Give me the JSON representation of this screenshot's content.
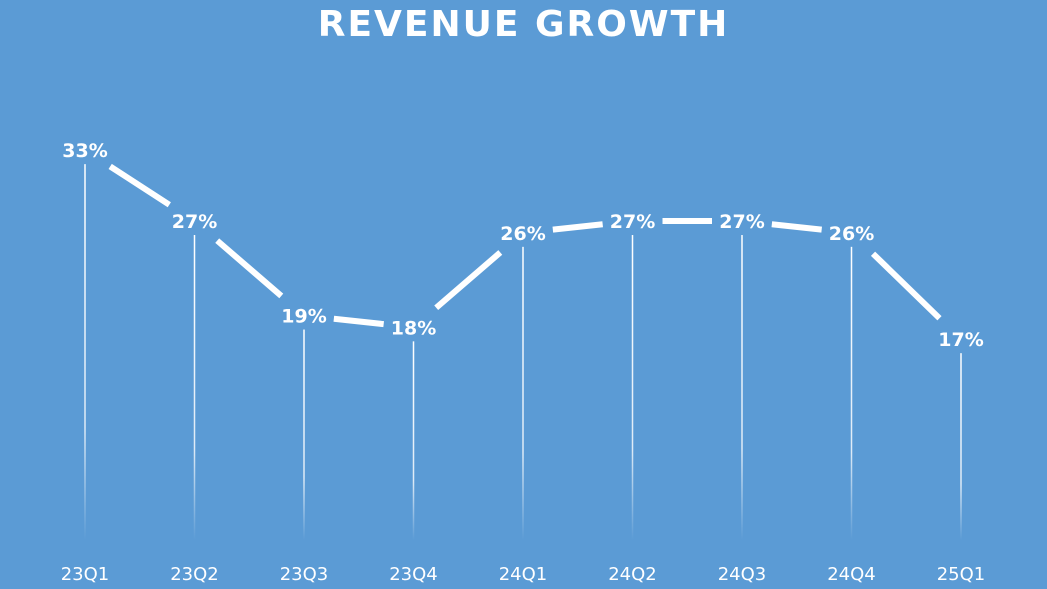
{
  "chart_data": {
    "type": "line",
    "title": "REVENUE GROWTH",
    "categories": [
      "23Q1",
      "23Q2",
      "23Q3",
      "23Q4",
      "24Q1",
      "24Q2",
      "24Q3",
      "24Q4",
      "25Q1"
    ],
    "series": [
      {
        "values": [
          33,
          27,
          19,
          18,
          26,
          27,
          27,
          26,
          17
        ],
        "labels": [
          "33%",
          "27%",
          "19%",
          "18%",
          "26%",
          "27%",
          "27%",
          "26%",
          "17%"
        ]
      }
    ],
    "ylim": [
      0,
      43
    ],
    "grid": false,
    "legend": "none",
    "drop_lines": true,
    "colors": {
      "background": "#5b9bd5",
      "line": "#ffffff",
      "text": "#ffffff"
    }
  }
}
